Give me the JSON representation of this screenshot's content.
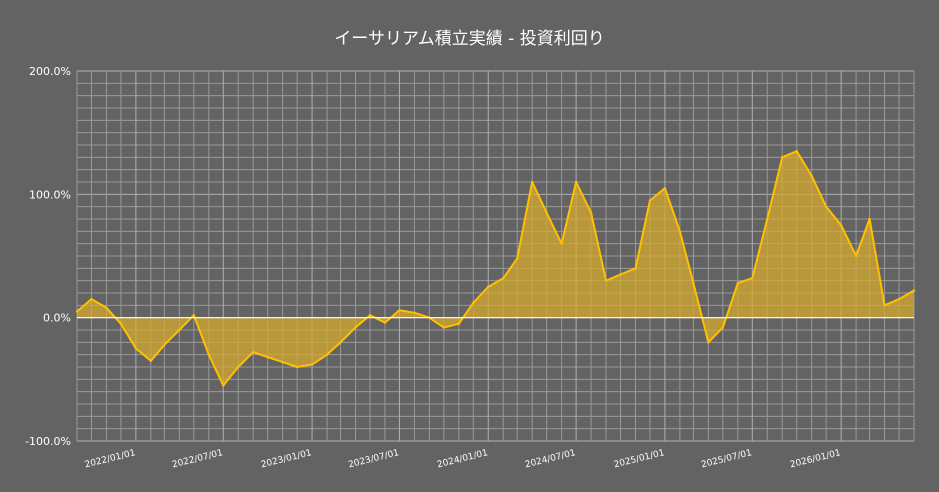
{
  "chart_data": {
    "type": "area",
    "title": "イーサリアム積立実績 - 投資利回り",
    "xlabel": "",
    "ylabel": "",
    "ylim": [
      -100,
      200
    ],
    "y_unit": "%",
    "y_ticks": [
      {
        "value": 200,
        "label": "200.0%"
      },
      {
        "value": 100,
        "label": "100.0%"
      },
      {
        "value": 0,
        "label": "0.0%"
      },
      {
        "value": -100,
        "label": "-100.0%"
      }
    ],
    "x_ticks": [
      "2022/01/01",
      "2022/07/01",
      "2023/01/01",
      "2023/07/01",
      "2024/01/01",
      "2024/07/01",
      "2025/01/01",
      "2025/07/01",
      "2026/01/01"
    ],
    "xlim": [
      "2021/09/01",
      "2026/06/01"
    ],
    "grid": true,
    "colors": {
      "line": "#ffc000",
      "fill": "#d4a92e",
      "grid": "#9a9a9a",
      "text": "#ffffff",
      "background": "#636363"
    },
    "series": [
      {
        "x": [
          "2021/09/01",
          "2021/10/01",
          "2021/11/01",
          "2021/12/01",
          "2022/01/01",
          "2022/02/01",
          "2022/03/01",
          "2022/04/01",
          "2022/05/01",
          "2022/06/01",
          "2022/07/01",
          "2022/08/01",
          "2022/09/01",
          "2022/10/01",
          "2022/11/01",
          "2022/12/01",
          "2023/01/01",
          "2023/02/01",
          "2023/03/01",
          "2023/04/01",
          "2023/05/01",
          "2023/06/01",
          "2023/07/01",
          "2023/08/01",
          "2023/09/01",
          "2023/10/01",
          "2023/11/01",
          "2023/12/01",
          "2024/01/01",
          "2024/02/01",
          "2024/03/01",
          "2024/04/01",
          "2024/05/01",
          "2024/06/01",
          "2024/07/01",
          "2024/08/01",
          "2024/09/01",
          "2024/10/01",
          "2024/11/01",
          "2024/12/01",
          "2025/01/01",
          "2025/02/01",
          "2025/03/01",
          "2025/04/01",
          "2025/05/01",
          "2025/06/01",
          "2025/07/01",
          "2025/08/01",
          "2025/09/01",
          "2025/10/01",
          "2025/11/01",
          "2025/12/01",
          "2026/01/01",
          "2026/02/01",
          "2026/03/01",
          "2026/04/01",
          "2026/05/01",
          "2026/06/01"
        ],
        "values": [
          5,
          15,
          8,
          -5,
          -25,
          -35,
          -22,
          -10,
          2,
          -30,
          -55,
          -40,
          -28,
          -32,
          -36,
          -40,
          -38,
          -30,
          -20,
          -8,
          2,
          -4,
          6,
          4,
          0,
          -8,
          -5,
          12,
          25,
          32,
          48,
          110,
          85,
          60,
          110,
          85,
          30,
          35,
          40,
          95,
          105,
          70,
          28,
          -20,
          -8,
          28,
          32,
          80,
          130,
          135,
          115,
          90,
          75,
          50,
          80,
          10,
          15,
          22
        ]
      }
    ]
  }
}
